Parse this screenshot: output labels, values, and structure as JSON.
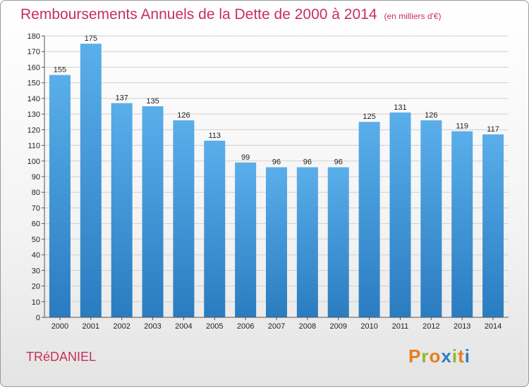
{
  "title": "Remboursements Annuels de la Dette de 2000 à 2014",
  "unit_label": "(en milliers d'€)",
  "town": "TRéDANIEL",
  "logo_text": "Proxiti",
  "colors": {
    "accent": "#c8305a",
    "bar_top": "#5aaeea",
    "bar_bottom": "#2a7cc0",
    "logo_letters": [
      "#e87d1e",
      "#8cbb2a",
      "#e87d1e",
      "#2f7cc4",
      "#8cbb2a",
      "#e87d1e",
      "#2f7cc4"
    ]
  },
  "chart_data": {
    "type": "bar",
    "title": "Remboursements Annuels de la Dette de 2000 à 2014",
    "xlabel": "",
    "ylabel": "",
    "categories": [
      "2000",
      "2001",
      "2002",
      "2003",
      "2004",
      "2005",
      "2006",
      "2007",
      "2008",
      "2009",
      "2010",
      "2011",
      "2012",
      "2013",
      "2014"
    ],
    "values": [
      155,
      175,
      137,
      135,
      126,
      113,
      99,
      96,
      96,
      96,
      125,
      131,
      126,
      119,
      117
    ],
    "ylim": [
      0,
      180
    ],
    "ytick_step": 10,
    "grid": true
  }
}
